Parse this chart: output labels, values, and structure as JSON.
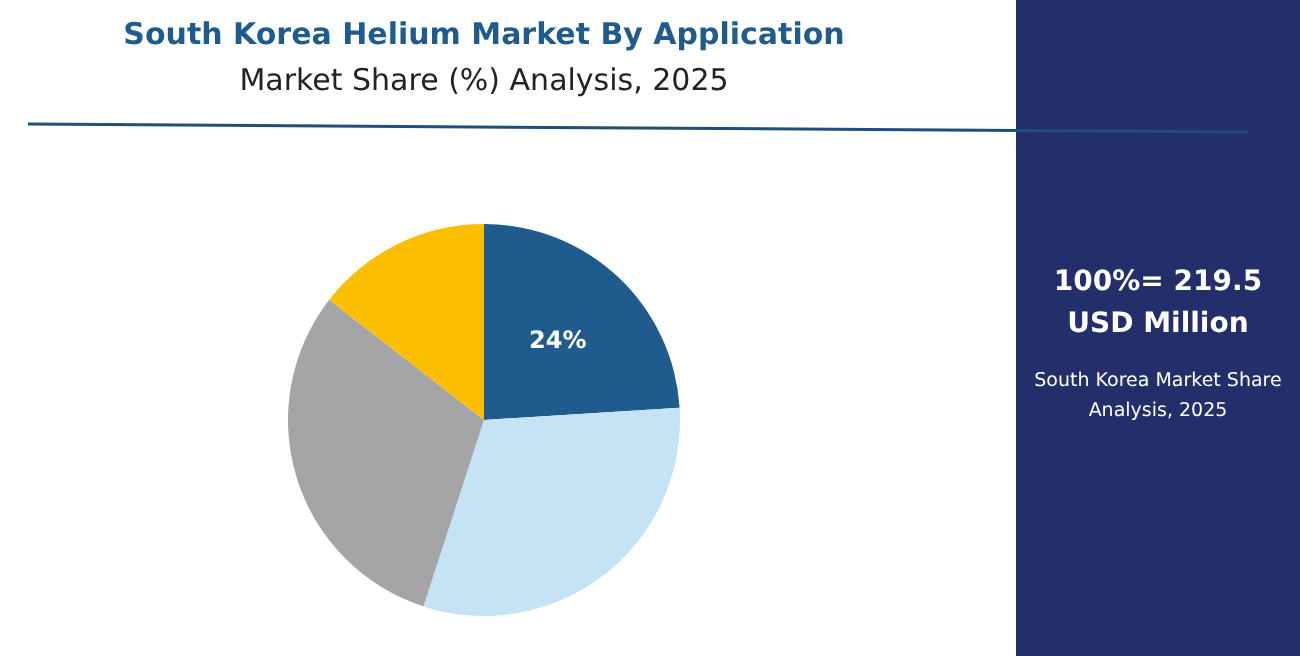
{
  "chart_data": {
    "type": "pie",
    "title": "South Korea Helium Market By Application",
    "subtitle": "Market Share (%) Analysis, 2025",
    "categories": [
      null,
      null,
      null,
      null
    ],
    "values": [
      24,
      31,
      30.5,
      14.5
    ],
    "colors": [
      "#1f5b8c",
      "#c5e3f5",
      "#a5a5a7",
      "#fcbf00"
    ],
    "value_labels": [
      "24%",
      null,
      null,
      null
    ],
    "annotations": [
      "100%= 219.5 USD Million",
      "South Korea Market Share Analysis, 2025"
    ]
  }
}
